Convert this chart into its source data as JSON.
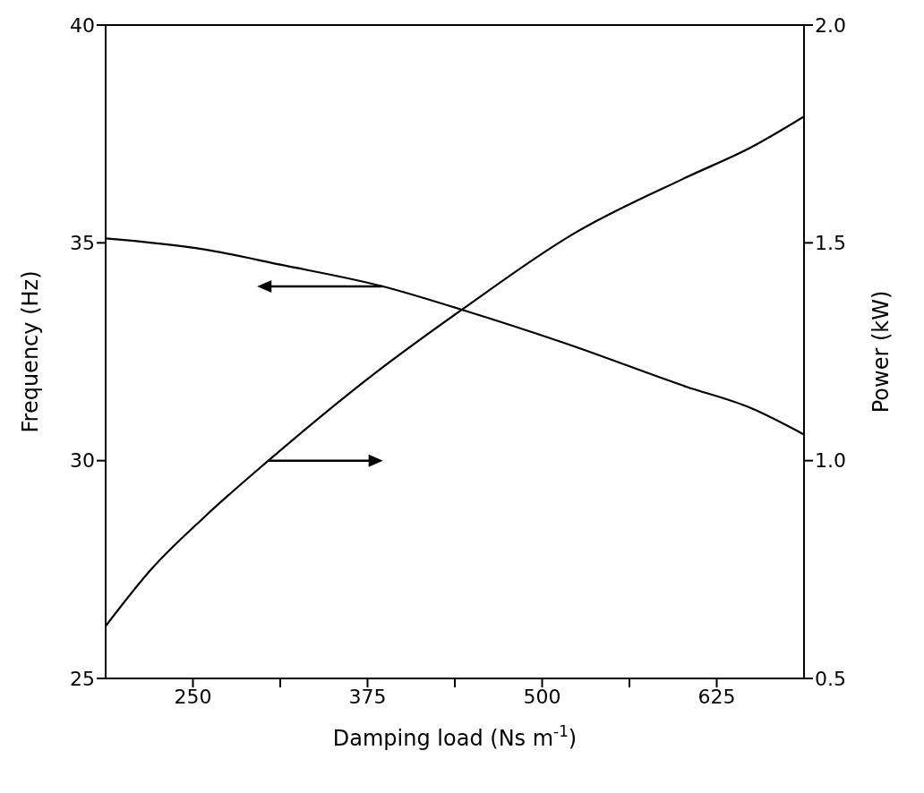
{
  "chart_data": {
    "type": "line",
    "xlabel": "Damping load (Ns m$^{-1}$)",
    "ylabel": "Frequency (Hz)",
    "y2label": "Power (kW)",
    "xlim": [
      187.5,
      687.5
    ],
    "xticks": [
      250,
      {
        "value": 312.5,
        "label": null
      },
      375,
      {
        "value": 437.5,
        "label": null
      },
      500,
      {
        "value": 562.5,
        "label": null
      },
      625
    ],
    "ylim": [
      25,
      40
    ],
    "yticks": [
      25,
      30,
      35,
      40
    ],
    "y2lim": [
      0.5,
      2.0
    ],
    "y2ticks": [
      0.5,
      {
        "value": 1,
        "label": "1.0"
      },
      1.5,
      {
        "value": 2,
        "label": "2.0"
      }
    ],
    "marker": "none",
    "line_style": "solid",
    "series": [
      {
        "color": "#000000",
        "x": [
          187.5,
          258,
          312.5,
          386,
          444,
          516,
          603,
          650,
          687.5
        ],
        "values": [
          35.1,
          34.85,
          34.5,
          34.0,
          33.45,
          32.7,
          31.7,
          31.2,
          30.6
        ]
      },
      {
        "color": "#000000",
        "axis": "y2",
        "x": [
          187.5,
          220,
          258,
          304,
          380,
          444,
          522,
          603,
          650,
          687.5
        ],
        "values": [
          0.62,
          0.75,
          0.87,
          1.0,
          1.2,
          1.35,
          1.52,
          1.65,
          1.72,
          1.79
        ]
      }
    ]
  }
}
